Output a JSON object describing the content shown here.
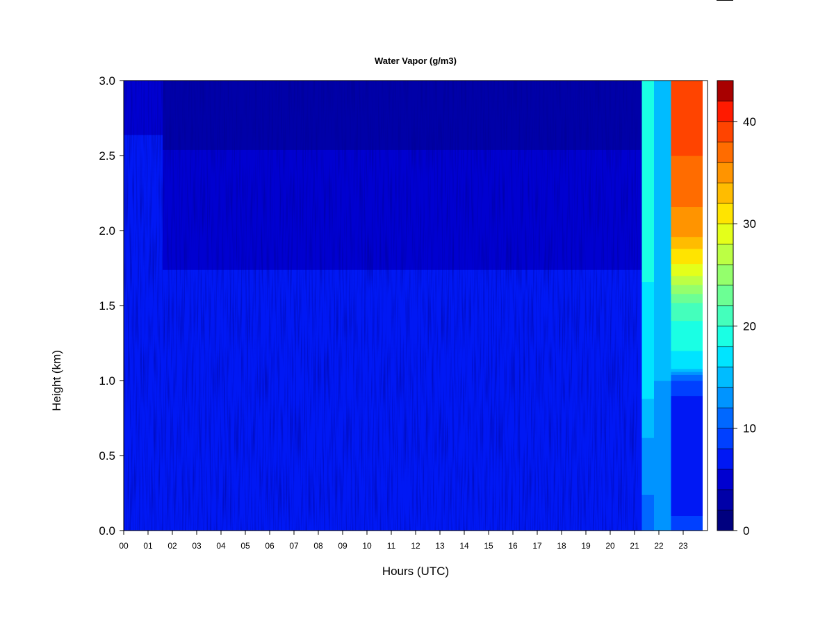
{
  "chart_data": {
    "type": "heatmap",
    "title": "Water Vapor (g/m3)",
    "xlabel": "Hours (UTC)",
    "ylabel": "Height (km)",
    "x_ticks": [
      "00",
      "01",
      "02",
      "03",
      "04",
      "05",
      "06",
      "07",
      "08",
      "09",
      "10",
      "11",
      "12",
      "13",
      "14",
      "15",
      "16",
      "17",
      "18",
      "19",
      "20",
      "21",
      "22",
      "23"
    ],
    "x_range": [
      0,
      24
    ],
    "y_ticks": [
      "0.0",
      "0.5",
      "1.0",
      "1.5",
      "2.0",
      "2.5",
      "3.0"
    ],
    "y_range": [
      0,
      3
    ],
    "colorbar": {
      "range": [
        0,
        44
      ],
      "ticks": [
        "0",
        "10",
        "20",
        "30",
        "40"
      ],
      "levels": [
        {
          "from": 0,
          "to": 2,
          "color": "#00007f"
        },
        {
          "from": 2,
          "to": 4,
          "color": "#0000a8"
        },
        {
          "from": 4,
          "to": 6,
          "color": "#0000d0"
        },
        {
          "from": 6,
          "to": 8,
          "color": "#0018f4"
        },
        {
          "from": 8,
          "to": 10,
          "color": "#0040ff"
        },
        {
          "from": 10,
          "to": 12,
          "color": "#0068ff"
        },
        {
          "from": 12,
          "to": 14,
          "color": "#0094ff"
        },
        {
          "from": 14,
          "to": 16,
          "color": "#00bcff"
        },
        {
          "from": 16,
          "to": 18,
          "color": "#00e4ff"
        },
        {
          "from": 18,
          "to": 20,
          "color": "#1affe4"
        },
        {
          "from": 20,
          "to": 22,
          "color": "#44ffbc"
        },
        {
          "from": 22,
          "to": 24,
          "color": "#6cff94"
        },
        {
          "from": 24,
          "to": 26,
          "color": "#94ff6c"
        },
        {
          "from": 26,
          "to": 28,
          "color": "#bcff44"
        },
        {
          "from": 28,
          "to": 30,
          "color": "#e4ff1a"
        },
        {
          "from": 30,
          "to": 32,
          "color": "#ffe400"
        },
        {
          "from": 32,
          "to": 34,
          "color": "#ffbc00"
        },
        {
          "from": 34,
          "to": 36,
          "color": "#ff9400"
        },
        {
          "from": 36,
          "to": 38,
          "color": "#ff6c00"
        },
        {
          "from": 38,
          "to": 40,
          "color": "#ff4400"
        },
        {
          "from": 40,
          "to": 42,
          "color": "#ff1a00"
        },
        {
          "from": 42,
          "to": 44,
          "color": "#a80000"
        }
      ]
    },
    "field_summary": {
      "columns": [
        {
          "hours": [
            0.0,
            1.6
          ],
          "profile": [
            [
              0.0,
              7.5
            ],
            [
              1.6,
              7.5
            ],
            [
              2.3,
              6.5
            ],
            [
              3.0,
              5.5
            ]
          ]
        },
        {
          "hours": [
            1.6,
            21.3
          ],
          "profile": [
            [
              0.0,
              7.0
            ],
            [
              0.3,
              6.5
            ],
            [
              0.8,
              6.5
            ],
            [
              1.7,
              6.5
            ],
            [
              1.8,
              5.5
            ],
            [
              2.3,
              4.5
            ],
            [
              3.0,
              3.0
            ]
          ]
        },
        {
          "hours": [
            21.3,
            21.8
          ],
          "profile": [
            [
              0.0,
              11.0
            ],
            [
              0.5,
              13.0
            ],
            [
              1.0,
              17.0
            ],
            [
              1.5,
              17.5
            ],
            [
              2.0,
              19.0
            ],
            [
              3.0,
              19.0
            ]
          ]
        },
        {
          "hours": [
            21.8,
            22.5
          ],
          "profile": [
            [
              0.0,
              12.0
            ],
            [
              0.5,
              13.0
            ],
            [
              1.0,
              14.0
            ],
            [
              1.5,
              15.0
            ],
            [
              2.0,
              15.0
            ],
            [
              3.0,
              14.0
            ]
          ]
        },
        {
          "hours": [
            22.5,
            23.8
          ],
          "profile": [
            [
              0.0,
              8.5
            ],
            [
              0.3,
              7.0
            ],
            [
              0.8,
              6.5
            ],
            [
              1.0,
              9.5
            ],
            [
              1.1,
              17.0
            ],
            [
              1.5,
              21.0
            ],
            [
              1.7,
              28.0
            ],
            [
              2.0,
              35.0
            ],
            [
              2.5,
              38.0
            ],
            [
              3.0,
              40.0
            ]
          ]
        }
      ]
    }
  }
}
